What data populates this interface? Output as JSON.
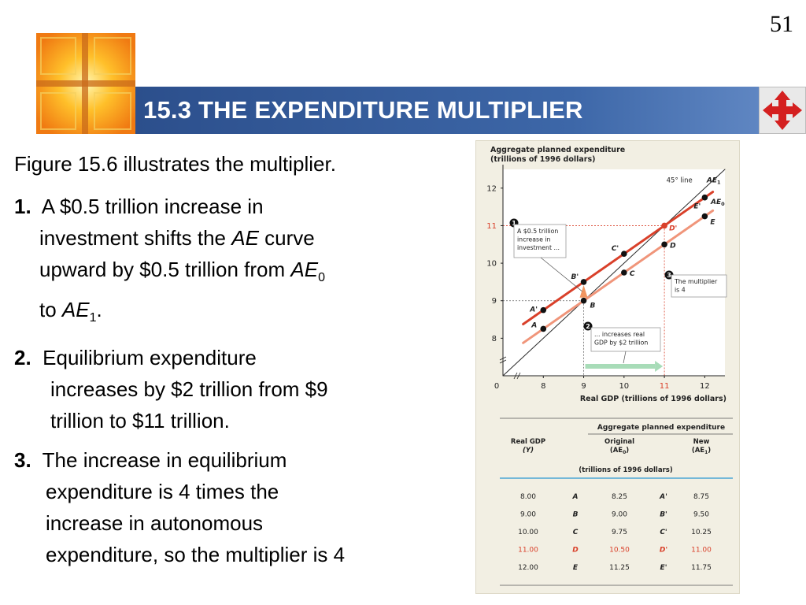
{
  "slide": {
    "number": "51",
    "title": "15.3 THE EXPENDITURE MULTIPLIER"
  },
  "icons": {
    "logo": "golden-cross-window-logo",
    "nav": "four-way-arrow-icon"
  },
  "colors": {
    "title_bar": "#3a61a0",
    "ae1_line": "#d9402a",
    "ae0_line": "#f0957a",
    "arrow": "#a8dcb8",
    "highlight": "#d9402a",
    "table_rule": "#4aa6d4"
  },
  "text": {
    "intro": "Figure 15.6 illustrates the multiplier.",
    "p1": {
      "num": "1.",
      "l1": "A $0.5 trillion increase in",
      "l2a": "investment shifts the ",
      "l2b": "AE",
      "l2c": " curve",
      "l3a": "upward  by $0.5 trillion from ",
      "l3b": "AE",
      "l3c": "0",
      "l4a": "to ",
      "l4b": "AE",
      "l4c": "1",
      "l4d": "."
    },
    "p2": {
      "num": "2.",
      "l1": "Equilibrium expenditure",
      "l2": "increases by $2 trillion from $9",
      "l3": "trillion to $11 trillion."
    },
    "p3": {
      "num": "3.",
      "l1": "The increase in equilibrium",
      "l2": "expenditure is 4 times the",
      "l3": "increase in autonomous",
      "l4": "expenditure, so the multiplier is 4"
    }
  },
  "chart_data": {
    "type": "line",
    "ylabel_line1": "Aggregate planned expenditure",
    "ylabel_line2": "(trillions of 1996 dollars)",
    "xlabel": "Real GDP (trillions of 1996 dollars)",
    "xlim": [
      7,
      12.5
    ],
    "ylim": [
      7,
      12.5
    ],
    "x_ticks": [
      "0",
      "8",
      "9",
      "10",
      "11",
      "12"
    ],
    "y_ticks": [
      "8",
      "9",
      "10",
      "11",
      "12"
    ],
    "series": [
      {
        "name": "45° line",
        "x": [
          7,
          12.5
        ],
        "y": [
          7,
          12.5
        ],
        "color": "#2a2a2a"
      },
      {
        "name": "AE0",
        "x": [
          7.5,
          12.2
        ],
        "y": [
          7.875,
          11.4
        ],
        "color": "#f0957a"
      },
      {
        "name": "AE1",
        "x": [
          7.5,
          12.2
        ],
        "y": [
          8.375,
          11.9
        ],
        "color": "#d9402a"
      }
    ],
    "points": [
      {
        "label": "A",
        "x": 8,
        "y": 8.25
      },
      {
        "label": "B",
        "x": 9,
        "y": 9
      },
      {
        "label": "C",
        "x": 10,
        "y": 9.75
      },
      {
        "label": "D",
        "x": 11,
        "y": 10.5
      },
      {
        "label": "E",
        "x": 12,
        "y": 11.25
      },
      {
        "label": "A'",
        "x": 8,
        "y": 8.75
      },
      {
        "label": "B'",
        "x": 9,
        "y": 9.5
      },
      {
        "label": "C'",
        "x": 10,
        "y": 10.25
      },
      {
        "label": "D'",
        "x": 11,
        "y": 11,
        "highlight": true
      },
      {
        "label": "E'",
        "x": 12,
        "y": 11.75
      }
    ],
    "line_labels": {
      "line45": "45° line",
      "ae1_main": "AE",
      "ae1_sub": "1",
      "ae0_main": "AE",
      "ae0_sub": "0"
    },
    "annotations": {
      "n1": "1",
      "n1_lines": [
        "A $0.5 trillion",
        "increase in",
        "investment ..."
      ],
      "n2": "2",
      "n2_lines": [
        "... increases real",
        "GDP by $2 trillion"
      ],
      "n3": "3",
      "n3_lines": [
        "The multiplier",
        "is 4"
      ]
    }
  },
  "table": {
    "group_header": "Aggregate planned expenditure",
    "col1": [
      "Real GDP",
      "(Y)"
    ],
    "col2": [
      "Original",
      "(AE",
      "0",
      ")"
    ],
    "col3": [
      "New",
      "(AE",
      "1",
      ")"
    ],
    "units": "(trillions of 1996 dollars)",
    "rows": [
      {
        "y": "8.00",
        "p": "A",
        "orig": "8.25",
        "pp": "A'",
        "new": "8.75",
        "highlight": false
      },
      {
        "y": "9.00",
        "p": "B",
        "orig": "9.00",
        "pp": "B'",
        "new": "9.50",
        "highlight": false
      },
      {
        "y": "10.00",
        "p": "C",
        "orig": "9.75",
        "pp": "C'",
        "new": "10.25",
        "highlight": false
      },
      {
        "y": "11.00",
        "p": "D",
        "orig": "10.50",
        "pp": "D'",
        "new": "11.00",
        "highlight": true
      },
      {
        "y": "12.00",
        "p": "E",
        "orig": "11.25",
        "pp": "E'",
        "new": "11.75",
        "highlight": false
      }
    ]
  }
}
